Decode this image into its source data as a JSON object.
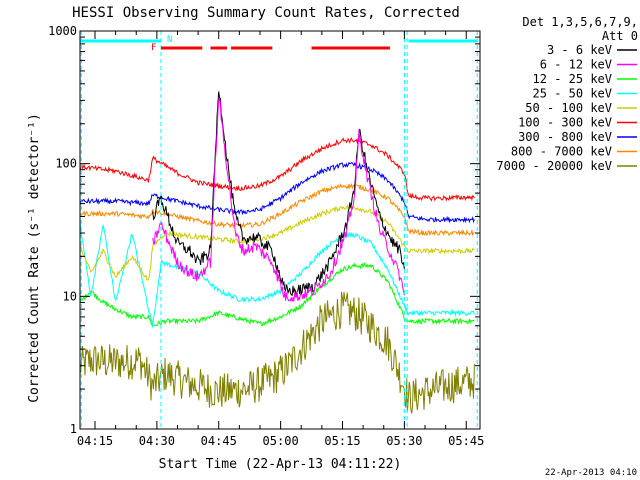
{
  "chart_data": {
    "type": "line",
    "title": "HESSI Observing Summary Count Rates, Corrected",
    "xlabel": "Start Time (22-Apr-13 04:11:22)",
    "ylabel": "Corrected Count Rate (s⁻¹ detector⁻¹)",
    "x_range": [
      "04:11:22",
      "05:48:20"
    ],
    "x_ticks": [
      "04:15",
      "04:30",
      "04:45",
      "05:00",
      "05:15",
      "05:30",
      "05:45"
    ],
    "ylim": [
      1,
      1000
    ],
    "y_scale": "log",
    "y_ticks": [
      "1",
      "10",
      "100",
      "1000"
    ],
    "grid": false,
    "legend_title": [
      "Det 1,3,5,6,7,9,",
      "Att 0"
    ],
    "legend_position": "right",
    "footer_date": "22-Apr-2013 04:10",
    "flags": {
      "night_label": "N",
      "flare_label": "F",
      "night_intervals": [
        [
          "04:11:22",
          "04:31:00"
        ],
        [
          "05:31:00",
          "05:47:40"
        ]
      ],
      "flare_intervals": [
        [
          "04:31:00",
          "04:41:00"
        ],
        [
          "04:43:00",
          "04:47:00"
        ],
        [
          "04:48:00",
          "04:58:00"
        ],
        [
          "05:07:30",
          "05:26:30"
        ]
      ]
    },
    "vlines": [
      "04:11:40",
      "04:31:00",
      "05:30:00",
      "05:30:40",
      "05:47:40"
    ],
    "series": [
      {
        "name": "3 - 6 keV",
        "color": "#000000",
        "x": [
          "04:29",
          "04:31",
          "04:35",
          "04:38",
          "04:40",
          "04:43",
          "04:45",
          "04:47",
          "04:49",
          "04:51",
          "04:54",
          "04:58",
          "05:01",
          "05:04",
          "05:08",
          "05:12",
          "05:16",
          "05:18",
          "05:19",
          "05:21",
          "05:24",
          "05:27",
          "05:29",
          "05:30"
        ],
        "values": [
          40,
          55,
          25,
          22,
          18,
          22,
          380,
          110,
          40,
          27,
          28,
          22,
          11,
          11,
          12,
          18,
          35,
          70,
          180,
          90,
          40,
          26,
          22,
          15
        ]
      },
      {
        "name": "6 - 12 keV",
        "color": "#ff00ff",
        "x": [
          "04:29",
          "04:31",
          "04:35",
          "04:38",
          "04:40",
          "04:43",
          "04:45",
          "04:47",
          "04:49",
          "04:51",
          "04:54",
          "04:58",
          "05:01",
          "05:04",
          "05:08",
          "05:12",
          "05:16",
          "05:18",
          "05:19",
          "05:21",
          "05:24",
          "05:27",
          "05:29",
          "05:30"
        ],
        "values": [
          25,
          35,
          18,
          15,
          14,
          18,
          320,
          95,
          30,
          22,
          24,
          18,
          10,
          10,
          11,
          15,
          30,
          60,
          170,
          80,
          32,
          20,
          14,
          10
        ]
      },
      {
        "name": "12 - 25 keV",
        "color": "#00ff00",
        "x": [
          "04:11:22",
          "04:14",
          "04:17",
          "04:20",
          "04:24",
          "04:28",
          "04:29",
          "04:32",
          "04:40",
          "04:45",
          "04:50",
          "04:55",
          "05:00",
          "05:05",
          "05:10",
          "05:15",
          "05:18",
          "05:22",
          "05:26",
          "05:30",
          "05:31",
          "05:35",
          "05:40",
          "05:47"
        ],
        "values": [
          9,
          11,
          9,
          8,
          7,
          7,
          6,
          6.5,
          6.5,
          7.5,
          6.8,
          6.2,
          7,
          8.5,
          12,
          16,
          17,
          17,
          13,
          7,
          6.5,
          6.5,
          6.5,
          6.5
        ]
      },
      {
        "name": "25 - 50 keV",
        "color": "#00ffff",
        "x": [
          "04:11:22",
          "04:14",
          "04:17",
          "04:20",
          "04:24",
          "04:28",
          "04:29",
          "04:31",
          "04:40",
          "04:45",
          "04:50",
          "04:55",
          "05:00",
          "05:05",
          "05:10",
          "05:15",
          "05:18",
          "05:22",
          "05:26",
          "05:30",
          "05:31",
          "05:35",
          "05:40",
          "05:47"
        ],
        "values": [
          35,
          10,
          35,
          9,
          30,
          8,
          6,
          18,
          15,
          11,
          9.5,
          9.5,
          11,
          15,
          22,
          29,
          29,
          25,
          16,
          8.5,
          7.5,
          7.5,
          7.5,
          7.5
        ]
      },
      {
        "name": "50 - 100 keV",
        "color": "#cccc00",
        "x": [
          "04:11:22",
          "04:14",
          "04:17",
          "04:20",
          "04:24",
          "04:28",
          "04:29",
          "04:32",
          "04:40",
          "04:45",
          "04:50",
          "04:55",
          "05:00",
          "05:05",
          "05:10",
          "05:15",
          "05:18",
          "05:22",
          "05:26",
          "05:30",
          "05:31",
          "05:35",
          "05:40",
          "05:47"
        ],
        "values": [
          24,
          15,
          22,
          14,
          20,
          13,
          24,
          30,
          28,
          27,
          26,
          27,
          30,
          36,
          42,
          47,
          47,
          43,
          36,
          24,
          22,
          22,
          22,
          22
        ]
      },
      {
        "name": "100 - 300 keV",
        "color": "#ff0000",
        "x": [
          "04:11:22",
          "04:20",
          "04:28",
          "04:29",
          "04:35",
          "04:40",
          "04:45",
          "04:50",
          "04:55",
          "05:00",
          "05:05",
          "05:10",
          "05:15",
          "05:18",
          "05:22",
          "05:26",
          "05:30",
          "05:31",
          "05:35",
          "05:40",
          "05:47"
        ],
        "values": [
          95,
          88,
          75,
          110,
          85,
          72,
          68,
          65,
          68,
          80,
          105,
          130,
          150,
          150,
          138,
          115,
          85,
          57,
          55,
          55,
          56
        ]
      },
      {
        "name": "300 - 800 keV",
        "color": "#0000ff",
        "x": [
          "04:11:22",
          "04:20",
          "04:28",
          "04:29",
          "04:35",
          "04:40",
          "04:45",
          "04:50",
          "04:55",
          "05:00",
          "05:05",
          "05:10",
          "05:15",
          "05:18",
          "05:22",
          "05:26",
          "05:30",
          "05:31",
          "05:35",
          "05:40",
          "05:47"
        ],
        "values": [
          52,
          52,
          50,
          58,
          52,
          48,
          45,
          43,
          45,
          55,
          72,
          88,
          98,
          98,
          90,
          75,
          52,
          40,
          38,
          38,
          38
        ]
      },
      {
        "name": "800 - 7000 keV",
        "color": "#ff8800",
        "x": [
          "04:11:22",
          "04:20",
          "04:28",
          "04:29",
          "04:35",
          "04:40",
          "04:45",
          "04:50",
          "04:55",
          "05:00",
          "05:05",
          "05:10",
          "05:15",
          "05:18",
          "05:22",
          "05:26",
          "05:30",
          "05:31",
          "05:35",
          "05:40",
          "05:47"
        ],
        "values": [
          42,
          42,
          40,
          44,
          40,
          37,
          35,
          34,
          35,
          42,
          52,
          62,
          68,
          68,
          63,
          55,
          40,
          31,
          30,
          30,
          30
        ]
      },
      {
        "name": "7000 - 20000 keV",
        "color": "#808000",
        "x": [
          "04:11:22",
          "04:14",
          "04:18",
          "04:22",
          "04:26",
          "04:29",
          "04:32",
          "04:38",
          "04:45",
          "04:52",
          "04:58",
          "05:02",
          "05:06",
          "05:10",
          "05:15",
          "05:18",
          "05:22",
          "05:26",
          "05:30",
          "05:31",
          "05:35",
          "05:40",
          "05:47"
        ],
        "values": [
          3,
          3.3,
          3.2,
          3.2,
          3.3,
          2.1,
          2.6,
          2.2,
          1.9,
          2,
          2.4,
          3,
          4.5,
          6.5,
          8,
          7.5,
          6,
          4.5,
          2.1,
          1.7,
          1.9,
          2.1,
          2.3
        ]
      }
    ]
  }
}
